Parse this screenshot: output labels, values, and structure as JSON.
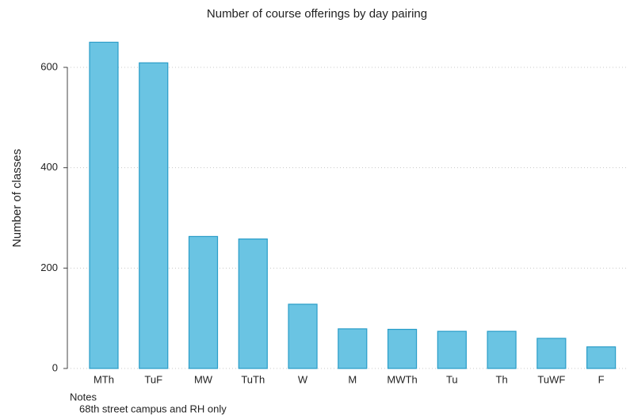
{
  "chart_data": {
    "type": "bar",
    "title": "Number of course offerings by day pairing",
    "y_label": "Number of classes",
    "categories": [
      "MTh",
      "TuF",
      "MW",
      "TuTh",
      "W",
      "M",
      "MWTh",
      "Tu",
      "Th",
      "TuWF",
      "F"
    ],
    "values": [
      650,
      609,
      263,
      258,
      128,
      79,
      78,
      74,
      74,
      60,
      43
    ],
    "color": "#6ac4e3",
    "edge_color": "#2a9dc8",
    "ylim": [
      0,
      660
    ],
    "yticks": [
      0,
      200,
      400,
      600
    ],
    "grid": true,
    "notes_title": "Notes",
    "notes": "68th street campus and RH only"
  }
}
